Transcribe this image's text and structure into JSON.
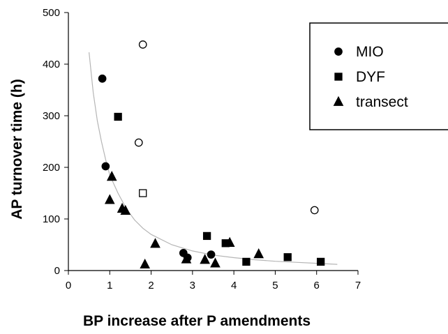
{
  "chart_data": {
    "type": "scatter",
    "title": "",
    "xlabel": "BP increase after P amendments",
    "ylabel": "AP turnover time (h)",
    "xlim": [
      0,
      7
    ],
    "ylim": [
      0,
      500
    ],
    "x_ticks": [
      "0",
      "1",
      "2",
      "3",
      "4",
      "5",
      "6",
      "7"
    ],
    "y_ticks": [
      "0",
      "100",
      "200",
      "300",
      "400",
      "500"
    ],
    "grid": false,
    "legend_position": "top-right",
    "series": [
      {
        "name": "MIO",
        "marker": "filled-circle",
        "color": "#000000",
        "points": [
          {
            "x": 0.82,
            "y": 372
          },
          {
            "x": 0.9,
            "y": 202
          },
          {
            "x": 2.78,
            "y": 34
          },
          {
            "x": 2.88,
            "y": 25
          },
          {
            "x": 3.45,
            "y": 31
          }
        ]
      },
      {
        "name": "DYF",
        "marker": "filled-square",
        "color": "#000000",
        "points": [
          {
            "x": 1.2,
            "y": 298
          },
          {
            "x": 3.35,
            "y": 67
          },
          {
            "x": 3.8,
            "y": 53
          },
          {
            "x": 4.3,
            "y": 17
          },
          {
            "x": 5.3,
            "y": 26
          },
          {
            "x": 6.1,
            "y": 17
          }
        ]
      },
      {
        "name": "transect",
        "marker": "filled-triangle",
        "color": "#000000",
        "points": [
          {
            "x": 1.0,
            "y": 137
          },
          {
            "x": 1.05,
            "y": 182
          },
          {
            "x": 1.3,
            "y": 120
          },
          {
            "x": 1.38,
            "y": 116
          },
          {
            "x": 1.85,
            "y": 12
          },
          {
            "x": 2.1,
            "y": 52
          },
          {
            "x": 2.85,
            "y": 22
          },
          {
            "x": 3.3,
            "y": 21
          },
          {
            "x": 3.55,
            "y": 14
          },
          {
            "x": 3.9,
            "y": 54
          },
          {
            "x": 4.6,
            "y": 32
          }
        ]
      },
      {
        "marker": "open-circle",
        "color": "#000000",
        "points": [
          {
            "x": 1.8,
            "y": 438
          },
          {
            "x": 1.7,
            "y": 248
          },
          {
            "x": 5.95,
            "y": 117
          }
        ]
      },
      {
        "marker": "open-square",
        "color": "#000000",
        "points": [
          {
            "x": 1.8,
            "y": 150
          }
        ]
      }
    ],
    "fit_curve": {
      "color": "#b5b5b5",
      "x_range": [
        0.5,
        6.5
      ],
      "points": [
        {
          "x": 0.5,
          "y": 423
        },
        {
          "x": 0.6,
          "y": 345
        },
        {
          "x": 0.7,
          "y": 290
        },
        {
          "x": 0.8,
          "y": 250
        },
        {
          "x": 0.9,
          "y": 215
        },
        {
          "x": 1.0,
          "y": 185
        },
        {
          "x": 1.2,
          "y": 150
        },
        {
          "x": 1.4,
          "y": 120
        },
        {
          "x": 1.6,
          "y": 98
        },
        {
          "x": 1.8,
          "y": 82
        },
        {
          "x": 2.0,
          "y": 70
        },
        {
          "x": 2.5,
          "y": 50
        },
        {
          "x": 3.0,
          "y": 38
        },
        {
          "x": 3.5,
          "y": 30
        },
        {
          "x": 4.0,
          "y": 25
        },
        {
          "x": 4.5,
          "y": 21
        },
        {
          "x": 5.0,
          "y": 18
        },
        {
          "x": 5.5,
          "y": 16
        },
        {
          "x": 6.0,
          "y": 14
        },
        {
          "x": 6.5,
          "y": 12
        }
      ]
    }
  }
}
